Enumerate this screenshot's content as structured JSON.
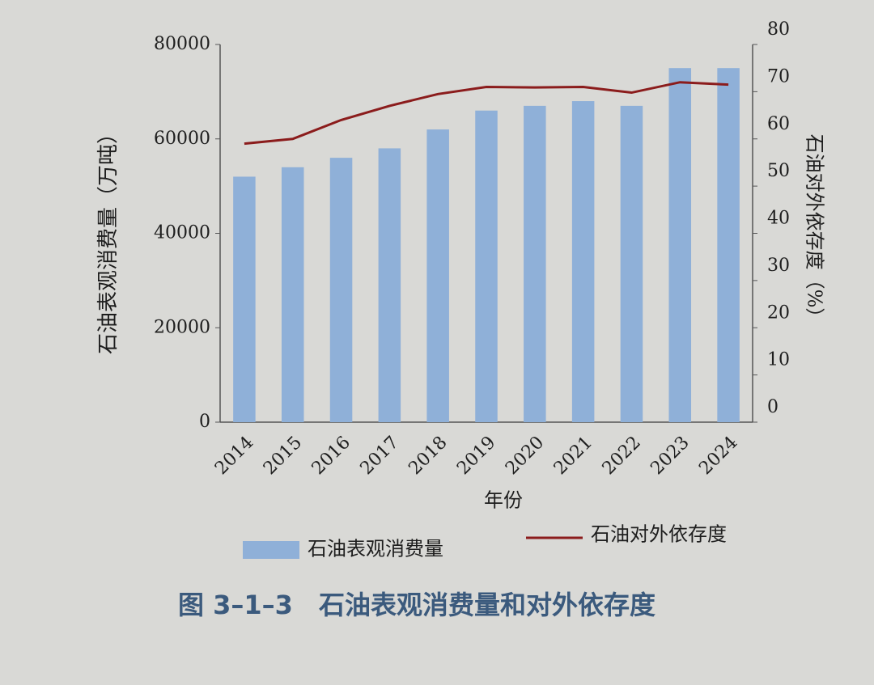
{
  "chart_data": {
    "type": "bar",
    "title": "图 3–1–3　石油表观消费量和对外依存度",
    "x_label": "年份",
    "y_label": "石油表观消费量（万吨）",
    "y2_label": "石油对外依存度（%）",
    "categories": [
      "2014",
      "2015",
      "2016",
      "2017",
      "2018",
      "2019",
      "2020",
      "2021",
      "2022",
      "2023",
      "2024"
    ],
    "series": [
      {
        "name": "石油表观消费量",
        "type": "bar",
        "color": "#8fb0d8",
        "values": [
          52000,
          54000,
          56000,
          58000,
          62000,
          66000,
          67000,
          68000,
          67000,
          75000,
          75000
        ]
      },
      {
        "name": "石油对外依存度",
        "type": "line",
        "axis": "y2",
        "color": "#8b1c1c",
        "values": [
          59,
          60,
          64,
          67,
          69.5,
          71,
          70.9,
          71,
          69.8,
          72,
          71.5
        ]
      }
    ],
    "ylim": [
      0,
      80000
    ],
    "yticks": [
      0,
      20000,
      40000,
      60000,
      80000
    ],
    "y2lim": [
      0,
      80
    ],
    "y2ticks": [
      0,
      10,
      20,
      30,
      40,
      50,
      60,
      70,
      80
    ],
    "grid": false
  }
}
